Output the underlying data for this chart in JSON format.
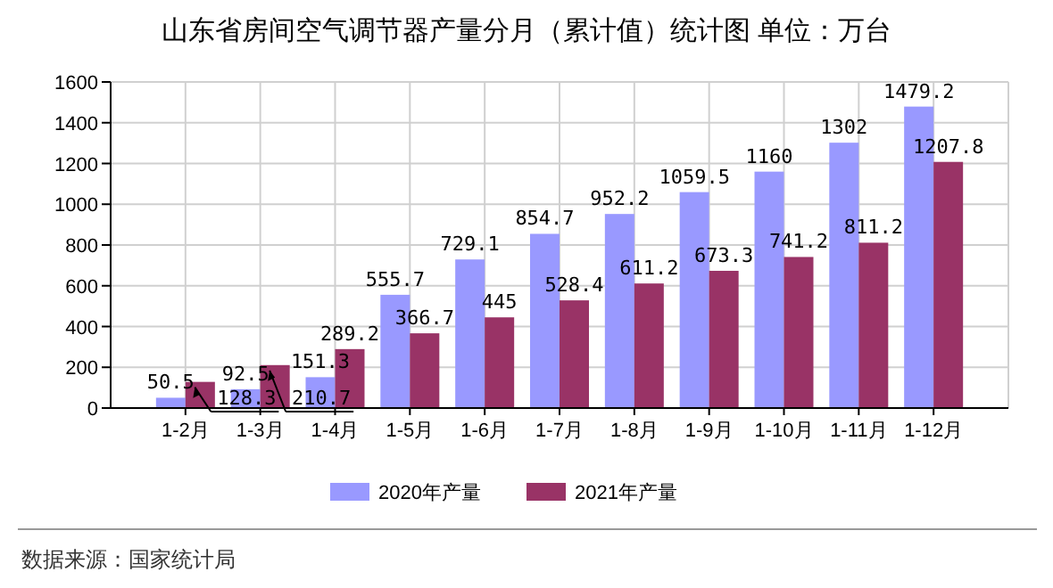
{
  "chart_data": {
    "type": "bar",
    "title": "山东省房间空气调节器产量分月（累计值）统计图 单位：万台",
    "categories": [
      "1-2月",
      "1-3月",
      "1-4月",
      "1-5月",
      "1-6月",
      "1-7月",
      "1-8月",
      "1-9月",
      "1-10月",
      "1-11月",
      "1-12月"
    ],
    "series": [
      {
        "name": "2020年产量",
        "color": "#9999ff",
        "values": [
          50.5,
          92.5,
          151.3,
          555.7,
          729.1,
          854.7,
          952.2,
          1059.5,
          1160,
          1302,
          1479.2
        ]
      },
      {
        "name": "2021年产量",
        "color": "#993366",
        "values": [
          128.3,
          210.7,
          289.2,
          366.7,
          445,
          528.4,
          611.2,
          673.3,
          741.2,
          811.2,
          1207.8
        ]
      }
    ],
    "ylim": [
      0,
      1600
    ],
    "yticks": [
      0,
      200,
      400,
      600,
      800,
      1000,
      1200,
      1400,
      1600
    ],
    "grid": true,
    "legend": "bottom",
    "data_labels": true,
    "annotations": [
      "数据来源：国家统计局"
    ]
  }
}
